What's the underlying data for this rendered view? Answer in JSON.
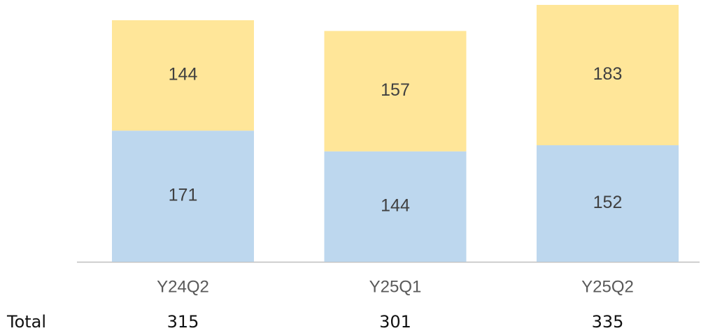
{
  "chart_data": {
    "type": "stacked-bar",
    "categories": [
      "Y24Q2",
      "Y25Q1",
      "Y25Q2"
    ],
    "series": [
      {
        "name": null,
        "color": "#bdd7ee",
        "values": [
          171,
          144,
          152
        ]
      },
      {
        "name": null,
        "color": "#ffe699",
        "values": [
          144,
          157,
          183
        ]
      }
    ],
    "totals": {
      "label": "Total",
      "values": [
        315,
        301,
        335
      ]
    }
  }
}
